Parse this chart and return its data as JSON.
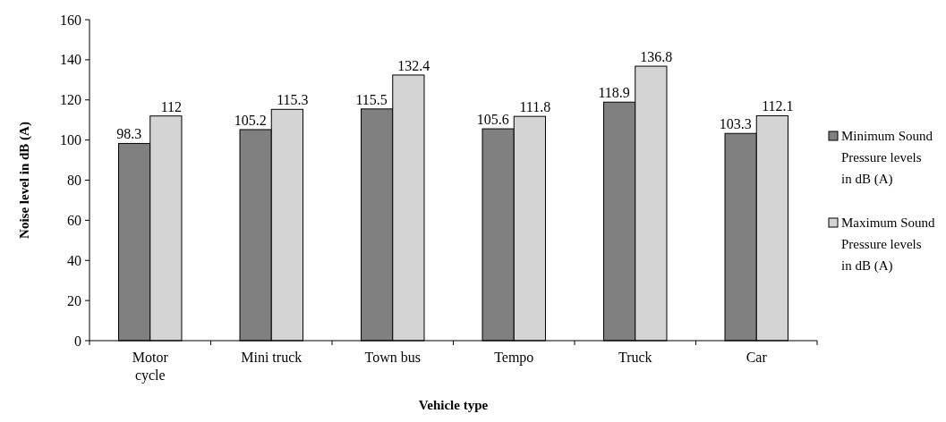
{
  "chart_data": {
    "type": "bar",
    "xlabel": "Vehicle type",
    "ylabel": "Noise level in dB (A)",
    "categories": [
      "Motor cycle",
      "Mini truck",
      "Town bus",
      "Tempo",
      "Truck",
      "Car"
    ],
    "series": [
      {
        "name": "Minimum Sound Pressure levels in dB (A)",
        "color": "#808080",
        "values": [
          98.3,
          105.2,
          115.5,
          105.6,
          118.9,
          103.3
        ]
      },
      {
        "name": "Maximum Sound Pressure levels in dB (A)",
        "color": "#d4d4d4",
        "values": [
          112,
          115.3,
          132.4,
          111.8,
          136.8,
          112.1
        ]
      }
    ],
    "ylim": [
      0,
      160
    ],
    "yticks": [
      0,
      20,
      40,
      60,
      80,
      100,
      120,
      140,
      160
    ],
    "data_labels": true,
    "legend": "right",
    "grid": false
  }
}
